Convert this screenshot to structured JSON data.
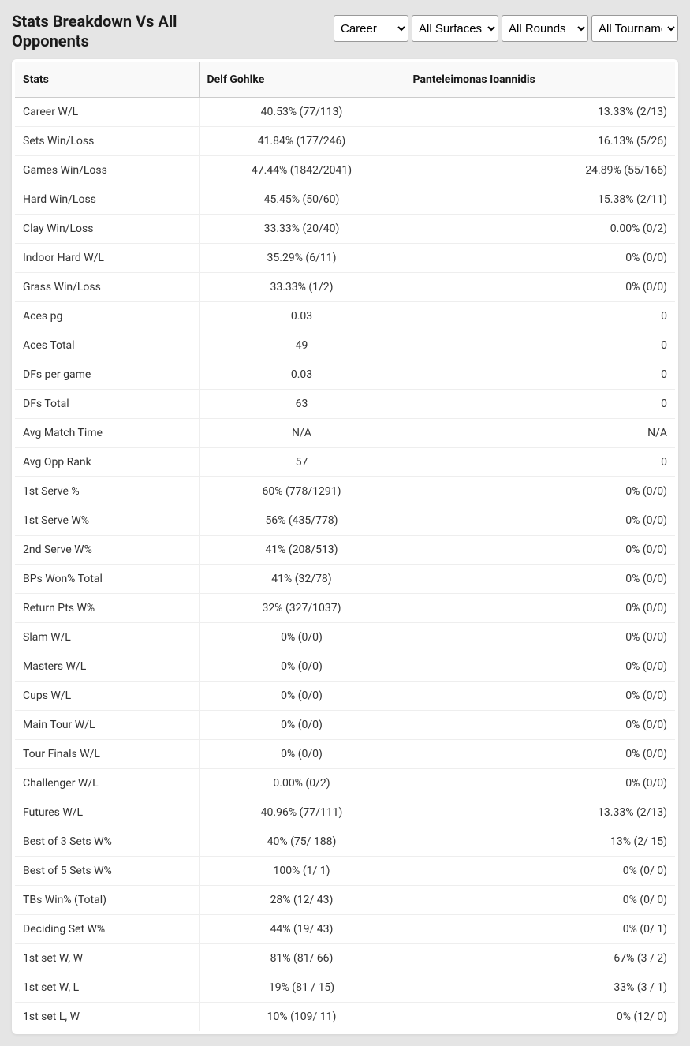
{
  "header": {
    "title": "Stats Breakdown Vs All Opponents"
  },
  "filters": {
    "period": {
      "selected": "Career",
      "options": [
        "Career"
      ]
    },
    "surface": {
      "selected": "All Surfaces",
      "options": [
        "All Surfaces"
      ]
    },
    "round": {
      "selected": "All Rounds",
      "options": [
        "All Rounds"
      ]
    },
    "tournament": {
      "selected": "All Tournaments",
      "options": [
        "All Tournaments"
      ]
    }
  },
  "table": {
    "columns": [
      "Stats",
      "Delf Gohlke",
      "Panteleimonas Ioannidis"
    ],
    "rows": [
      [
        "Career W/L",
        "40.53% (77/113)",
        "13.33% (2/13)"
      ],
      [
        "Sets Win/Loss",
        "41.84% (177/246)",
        "16.13% (5/26)"
      ],
      [
        "Games Win/Loss",
        "47.44% (1842/2041)",
        "24.89% (55/166)"
      ],
      [
        "Hard Win/Loss",
        "45.45% (50/60)",
        "15.38% (2/11)"
      ],
      [
        "Clay Win/Loss",
        "33.33% (20/40)",
        "0.00% (0/2)"
      ],
      [
        "Indoor Hard W/L",
        "35.29% (6/11)",
        "0% (0/0)"
      ],
      [
        "Grass Win/Loss",
        "33.33% (1/2)",
        "0% (0/0)"
      ],
      [
        "Aces pg",
        "0.03",
        "0"
      ],
      [
        "Aces Total",
        "49",
        "0"
      ],
      [
        "DFs per game",
        "0.03",
        "0"
      ],
      [
        "DFs Total",
        "63",
        "0"
      ],
      [
        "Avg Match Time",
        "N/A",
        "N/A"
      ],
      [
        "Avg Opp Rank",
        "57",
        "0"
      ],
      [
        "1st Serve %",
        "60% (778/1291)",
        "0% (0/0)"
      ],
      [
        "1st Serve W%",
        "56% (435/778)",
        "0% (0/0)"
      ],
      [
        "2nd Serve W%",
        "41% (208/513)",
        "0% (0/0)"
      ],
      [
        "BPs Won% Total",
        "41% (32/78)",
        "0% (0/0)"
      ],
      [
        "Return Pts W%",
        "32% (327/1037)",
        "0% (0/0)"
      ],
      [
        "Slam W/L",
        "0% (0/0)",
        "0% (0/0)"
      ],
      [
        "Masters W/L",
        "0% (0/0)",
        "0% (0/0)"
      ],
      [
        "Cups W/L",
        "0% (0/0)",
        "0% (0/0)"
      ],
      [
        "Main Tour W/L",
        "0% (0/0)",
        "0% (0/0)"
      ],
      [
        "Tour Finals W/L",
        "0% (0/0)",
        "0% (0/0)"
      ],
      [
        "Challenger W/L",
        "0.00% (0/2)",
        "0% (0/0)"
      ],
      [
        "Futures W/L",
        "40.96% (77/111)",
        "13.33% (2/13)"
      ],
      [
        "Best of 3 Sets W%",
        "40% (75/ 188)",
        "13% (2/ 15)"
      ],
      [
        "Best of 5 Sets W%",
        "100% (1/ 1)",
        "0% (0/ 0)"
      ],
      [
        "TBs Win% (Total)",
        "28% (12/ 43)",
        "0% (0/ 0)"
      ],
      [
        "Deciding Set W%",
        "44% (19/ 43)",
        "0% (0/ 1)"
      ],
      [
        "1st set W, W",
        "81% (81/ 66)",
        "67% (3 / 2)"
      ],
      [
        "1st set W, L",
        "19% (81 / 15)",
        "33% (3 / 1)"
      ],
      [
        "1st set L, W",
        "10% (109/ 11)",
        "0% (12/ 0)"
      ]
    ]
  },
  "style": {
    "body_bg": "#e5e5e5",
    "table_bg": "#ffffff",
    "header_bg": "#f9f9f9",
    "border_color": "#cccccc",
    "row_border": "#eeeeee",
    "text_color": "#333333",
    "title_color": "#1a1a1a",
    "title_fontsize": 20,
    "cell_fontsize": 14,
    "select_widths": [
      95,
      110,
      110,
      110
    ]
  }
}
